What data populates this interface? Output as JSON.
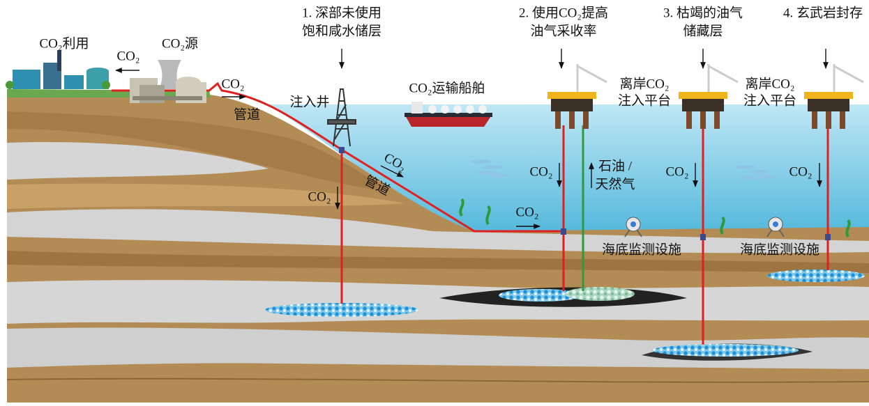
{
  "onshore": {
    "co2_use": "CO₂利用",
    "co2_to_use": "CO₂",
    "co2_source": "CO₂源",
    "co2_pipeline": "CO₂",
    "pipeline": "管道"
  },
  "sites": [
    {
      "title": [
        "1. 深部未使用",
        "饱和咸水储层"
      ],
      "well": "注入井",
      "injection_co2": "CO₂",
      "pipeline_co2": "CO₂",
      "pipeline": "管道"
    },
    {
      "title": [
        "2. 使用CO₂提高",
        "油气采收率"
      ],
      "seabed_co2": "CO₂",
      "injection_co2": "CO₂",
      "production": [
        "石油 /",
        "天然气"
      ],
      "monitoring": "海底监测设施"
    },
    {
      "title": [
        "3. 枯竭的油气",
        "储藏层"
      ],
      "platform": [
        "离岸CO₂",
        "注入平台"
      ],
      "injection_co2": "CO₂"
    },
    {
      "title": [
        "4. 玄武岩封存"
      ],
      "platform": [
        "离岸CO₂",
        "注入平台"
      ],
      "injection_co2": "CO₂",
      "monitoring": "海底监测设施"
    }
  ],
  "ship": "CO₂运输船舶"
}
